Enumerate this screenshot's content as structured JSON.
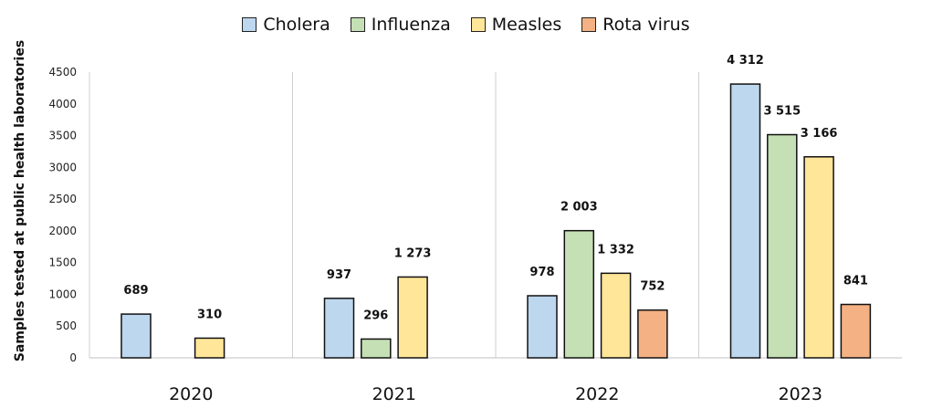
{
  "chart_data": {
    "type": "bar",
    "categories": [
      "2020",
      "2021",
      "2022",
      "2023"
    ],
    "series": [
      {
        "name": "Cholera",
        "color": "#bdd7ee",
        "values": [
          689,
          937,
          978,
          4312
        ],
        "labels": [
          "689",
          "937",
          "978",
          "4 312"
        ]
      },
      {
        "name": "Influenza",
        "color": "#c5e0b4",
        "values": [
          null,
          296,
          2003,
          3515
        ],
        "labels": [
          "",
          "296",
          "2 003",
          "3 515"
        ]
      },
      {
        "name": "Measles",
        "color": "#ffe699",
        "values": [
          310,
          1273,
          1332,
          3166
        ],
        "labels": [
          "310",
          "1 273",
          "1 332",
          "3 166"
        ]
      },
      {
        "name": "Rota virus",
        "color": "#f4b183",
        "values": [
          null,
          null,
          752,
          841
        ],
        "labels": [
          "",
          "",
          "752",
          "841"
        ]
      }
    ],
    "xlabel": "",
    "ylabel": "Samples tested at  public health laboratories",
    "ylim": [
      0,
      4500
    ],
    "yticks": [
      "0",
      "500",
      "1000",
      "1500",
      "2000",
      "2500",
      "3000",
      "3500",
      "4000",
      "4500"
    ],
    "grid": "vertical separators between categories",
    "legend": "top-center"
  }
}
